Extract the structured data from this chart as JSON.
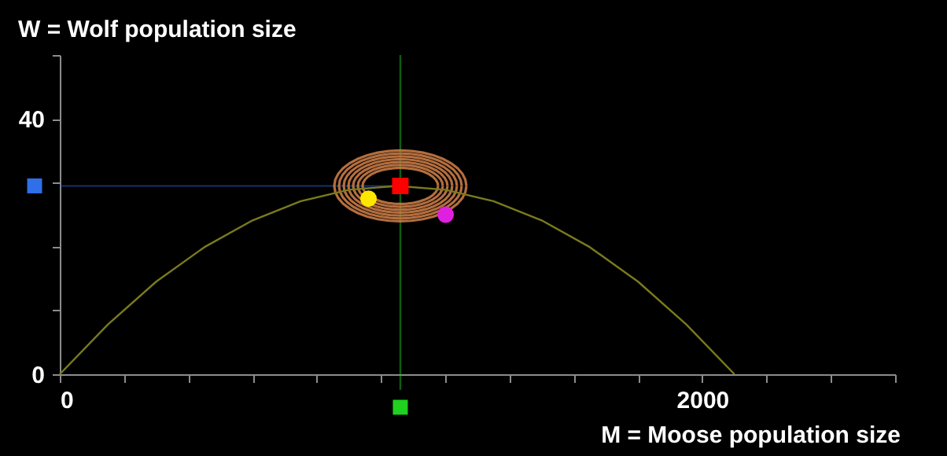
{
  "chart_data": {
    "type": "line",
    "xlabel": "M = Moose population size",
    "ylabel": "W = Wolf population size",
    "xlim": [
      0,
      2600
    ],
    "ylim": [
      0,
      50
    ],
    "xticks": [
      0,
      {
        "value": 200,
        "label": null
      },
      {
        "value": 400,
        "label": null
      },
      {
        "value": 600,
        "label": null
      },
      {
        "value": 800,
        "label": null
      },
      {
        "value": 1000,
        "label": null
      },
      {
        "value": 1200,
        "label": null
      },
      {
        "value": 1400,
        "label": null
      },
      {
        "value": 1600,
        "label": null
      },
      {
        "value": 1800,
        "label": null
      },
      2000,
      {
        "value": 2200,
        "label": null
      },
      {
        "value": 2400,
        "label": null
      },
      {
        "value": 2600,
        "label": null
      }
    ],
    "yticks": [
      0,
      {
        "value": 10,
        "label": null
      },
      {
        "value": 20,
        "label": null
      },
      {
        "value": 30,
        "label": null
      },
      40,
      {
        "value": 50,
        "label": null
      }
    ],
    "grid": false,
    "line_style": "solid",
    "ref_lines": [
      {
        "axis": "y",
        "value": 29.5,
        "color": "#2f6fe8"
      },
      {
        "axis": "x",
        "value": 1060,
        "color": "#1fd01f"
      }
    ],
    "series": [
      {
        "color": "#7a7a1e",
        "marker": "none",
        "x": [
          0,
          150,
          300,
          450,
          600,
          750,
          900,
          1050,
          1200,
          1350,
          1500,
          1650,
          1800,
          1950,
          2100
        ],
        "values": [
          0,
          7.8,
          14.5,
          19.9,
          24.1,
          27.1,
          28.9,
          29.5,
          28.9,
          27.1,
          24.1,
          19.9,
          14.5,
          7.8,
          0
        ]
      },
      {
        "type": "scatter",
        "color": "#ff0000",
        "marker": "square",
        "x": [
          1060
        ],
        "values": [
          29.5
        ]
      },
      {
        "type": "scatter",
        "color": "#ffe600",
        "marker": "circle",
        "x": [
          961
        ],
        "values": [
          27.5
        ]
      },
      {
        "type": "scatter",
        "color": "#e020e0",
        "marker": "circle",
        "x": [
          1201
        ],
        "values": [
          25
        ]
      }
    ]
  }
}
